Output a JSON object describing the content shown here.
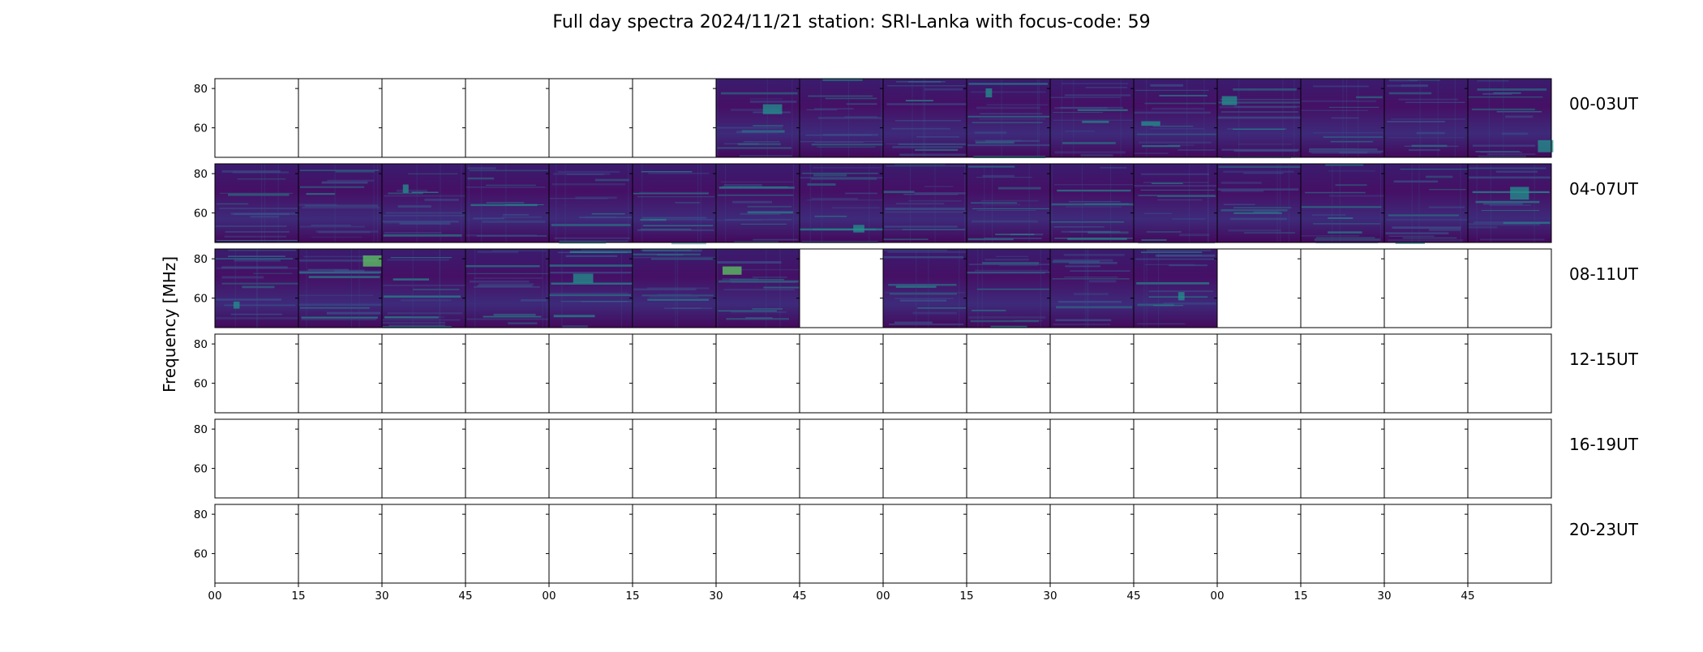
{
  "chart_data": {
    "type": "heatmap",
    "title": "Full day spectra 2024/11/21 station: SRI-Lanka with focus-code: 59",
    "ylabel": "Frequency [MHz]",
    "ylim": [
      45,
      85
    ],
    "y_ticks": [
      60,
      80
    ],
    "x_tick_labels": [
      "00",
      "15",
      "30",
      "45",
      "00",
      "15",
      "30",
      "45",
      "00",
      "15",
      "30",
      "45",
      "00",
      "15",
      "30",
      "45"
    ],
    "colormap": [
      "#440154",
      "#3b528b",
      "#21918c",
      "#5ec962",
      "#fde725"
    ],
    "rows": [
      {
        "label": "00-03UT",
        "panels": [
          0,
          0,
          0,
          0,
          0,
          0,
          1,
          1,
          1,
          1,
          1,
          1,
          1,
          1,
          1,
          1
        ]
      },
      {
        "label": "04-07UT",
        "panels": [
          1,
          1,
          1,
          1,
          1,
          1,
          1,
          1,
          1,
          1,
          1,
          1,
          1,
          1,
          1,
          1
        ]
      },
      {
        "label": "08-11UT",
        "panels": [
          1,
          1,
          1,
          1,
          1,
          1,
          1,
          0,
          1,
          1,
          1,
          1,
          0,
          0,
          0,
          0
        ]
      },
      {
        "label": "12-15UT",
        "panels": [
          0,
          0,
          0,
          0,
          0,
          0,
          0,
          0,
          0,
          0,
          0,
          0,
          0,
          0,
          0,
          0
        ]
      },
      {
        "label": "16-19UT",
        "panels": [
          0,
          0,
          0,
          0,
          0,
          0,
          0,
          0,
          0,
          0,
          0,
          0,
          0,
          0,
          0,
          0
        ]
      },
      {
        "label": "20-23UT",
        "panels": [
          0,
          0,
          0,
          0,
          0,
          0,
          0,
          0,
          0,
          0,
          0,
          0,
          0,
          0,
          0,
          0
        ]
      }
    ]
  }
}
